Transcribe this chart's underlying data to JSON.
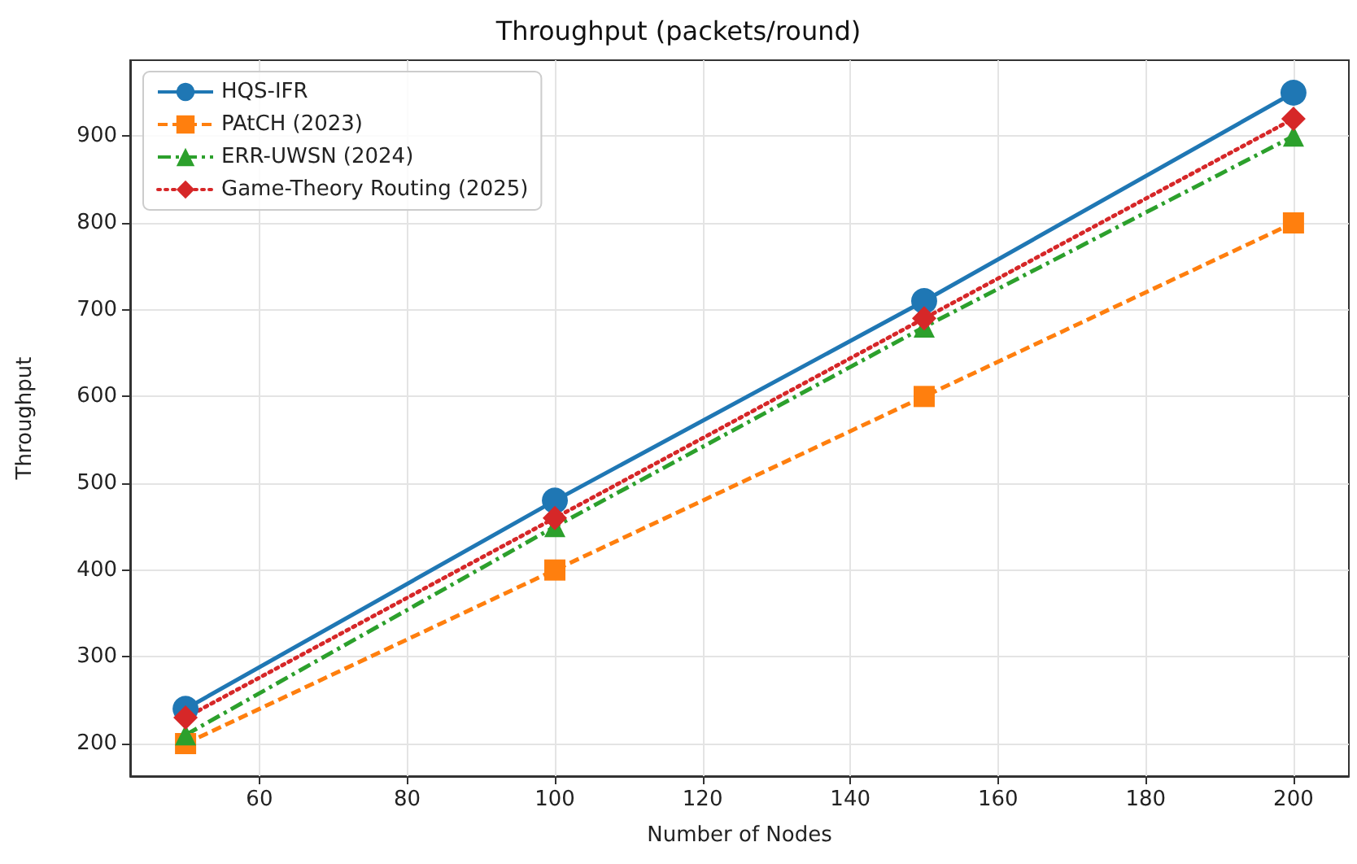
{
  "chart_data": {
    "type": "line",
    "title": "Throughput (packets/round)",
    "xlabel": "Number of Nodes",
    "ylabel": "Throughput",
    "x": [
      50,
      100,
      150,
      200
    ],
    "series": [
      {
        "name": "HQS-IFR",
        "color": "#1f77b4",
        "marker": "circle",
        "line_style": "solid",
        "values": [
          240,
          480,
          710,
          950
        ]
      },
      {
        "name": "PAtCH (2023)",
        "color": "#ff7f0e",
        "marker": "square",
        "line_style": "dashed",
        "values": [
          200,
          400,
          600,
          800
        ]
      },
      {
        "name": "ERR-UWSN (2024)",
        "color": "#2ca02c",
        "marker": "triangle",
        "line_style": "dashdot",
        "values": [
          210,
          450,
          680,
          900
        ]
      },
      {
        "name": "Game-Theory Routing (2025)",
        "color": "#d62728",
        "marker": "diamond",
        "line_style": "dotted",
        "values": [
          230,
          460,
          690,
          920
        ]
      }
    ],
    "xlim": [
      42.5,
      207.5
    ],
    "xticks": [
      60,
      80,
      100,
      120,
      140,
      160,
      180,
      200
    ],
    "ylim": [
      162.5,
      987.5
    ],
    "yticks": [
      200,
      300,
      400,
      500,
      600,
      700,
      800,
      900
    ],
    "grid": true,
    "legend": "top left"
  }
}
